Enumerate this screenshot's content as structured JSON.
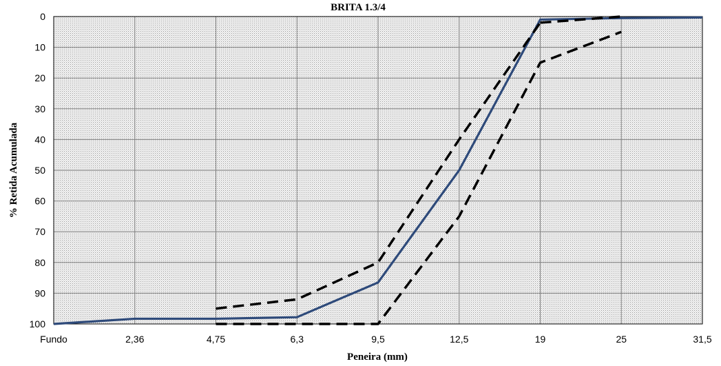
{
  "chart_data": {
    "type": "line",
    "title": "BRITA 1.3/4",
    "xlabel": "Peneira (mm)",
    "ylabel": "% Retida Acumulada",
    "categories": [
      "Fundo",
      "2,36",
      "4,75",
      "6,3",
      "9,5",
      "12,5",
      "19",
      "25",
      "31,5"
    ],
    "y_ticks": [
      "0",
      "10",
      "20",
      "30",
      "40",
      "50",
      "60",
      "70",
      "80",
      "90",
      "100"
    ],
    "ylim": [
      0,
      100
    ],
    "y_inverted": true,
    "grid": true,
    "legend": "none",
    "series": [
      {
        "style": "solid",
        "color": "#2e4a7a",
        "values": [
          100,
          98.3,
          98.3,
          97.8,
          86.5,
          50,
          1,
          0.5,
          0.3
        ]
      },
      {
        "style": "dashed",
        "color": "#000000",
        "values": [
          null,
          null,
          95,
          92,
          80,
          40,
          2,
          null,
          null
        ],
        "extra_points": [
          {
            "x": "19",
            "y": 2
          },
          {
            "x": "25",
            "y": 0
          }
        ]
      },
      {
        "style": "dashed",
        "color": "#000000",
        "values": [
          null,
          null,
          100,
          100,
          100,
          65,
          15,
          5,
          null
        ]
      }
    ]
  },
  "colors": {
    "plot_background": "#d9d9d9",
    "grid": "#808080",
    "solid_line": "#2e4a7a",
    "dashed_line": "#000000"
  }
}
